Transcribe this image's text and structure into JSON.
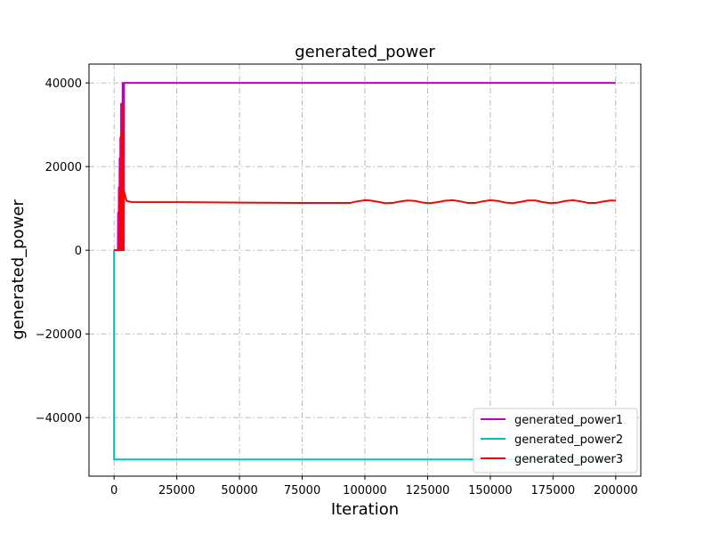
{
  "chart_data": {
    "type": "line",
    "title": "generated_power",
    "xlabel": "Iteration",
    "ylabel": "generated_power",
    "xlim": [
      -10000,
      210000
    ],
    "ylim": [
      -54000,
      44500
    ],
    "xticks": [
      0,
      25000,
      50000,
      75000,
      100000,
      125000,
      150000,
      175000,
      200000
    ],
    "yticks": [
      -40000,
      -20000,
      0,
      20000,
      40000
    ],
    "grid": true,
    "grid_style": "dashdot",
    "legend_position": "lower right",
    "series": [
      {
        "name": "generated_power1",
        "color": "#bf00bf",
        "x": [
          0,
          1500,
          1600,
          1800,
          1900,
          2100,
          2200,
          2400,
          2500,
          2700,
          2800,
          3000,
          3100,
          3300,
          3400,
          3600,
          3700,
          3900,
          4000,
          200000
        ],
        "y": [
          0,
          0,
          9000,
          0,
          15000,
          0,
          22000,
          0,
          27000,
          0,
          35000,
          0,
          35000,
          0,
          40000,
          0,
          40000,
          0,
          40000,
          40000
        ]
      },
      {
        "name": "generated_power2",
        "color": "#00bfbf",
        "x": [
          0,
          0,
          300,
          200000
        ],
        "y": [
          0,
          -50000,
          -50000,
          -50000
        ]
      },
      {
        "name": "generated_power3",
        "color": "#ff0000",
        "x": [
          0,
          2000,
          2300,
          2400,
          2700,
          2800,
          3100,
          3200,
          3500,
          3600,
          4000,
          5000,
          7000,
          25000,
          50000,
          75000,
          94000,
          97000,
          100000,
          102000,
          105000,
          108000,
          111000,
          114000,
          117000,
          120000,
          123000,
          126000,
          129000,
          132000,
          135000,
          138000,
          141000,
          144000,
          147000,
          150000,
          153000,
          156000,
          159000,
          162000,
          165000,
          168000,
          171000,
          174000,
          177000,
          180000,
          183000,
          186000,
          189000,
          192000,
          195000,
          198000,
          200000
        ],
        "y": [
          0,
          0,
          14000,
          0,
          20000,
          0,
          28000,
          0,
          35000,
          0,
          14000,
          11800,
          11500,
          11500,
          11400,
          11300,
          11300,
          11700,
          11950,
          11900,
          11600,
          11250,
          11300,
          11650,
          11900,
          11800,
          11400,
          11250,
          11500,
          11850,
          11950,
          11700,
          11300,
          11300,
          11700,
          11950,
          11800,
          11400,
          11250,
          11550,
          11900,
          11900,
          11500,
          11250,
          11400,
          11800,
          11950,
          11700,
          11300,
          11300,
          11650,
          11900,
          11850
        ]
      }
    ]
  }
}
